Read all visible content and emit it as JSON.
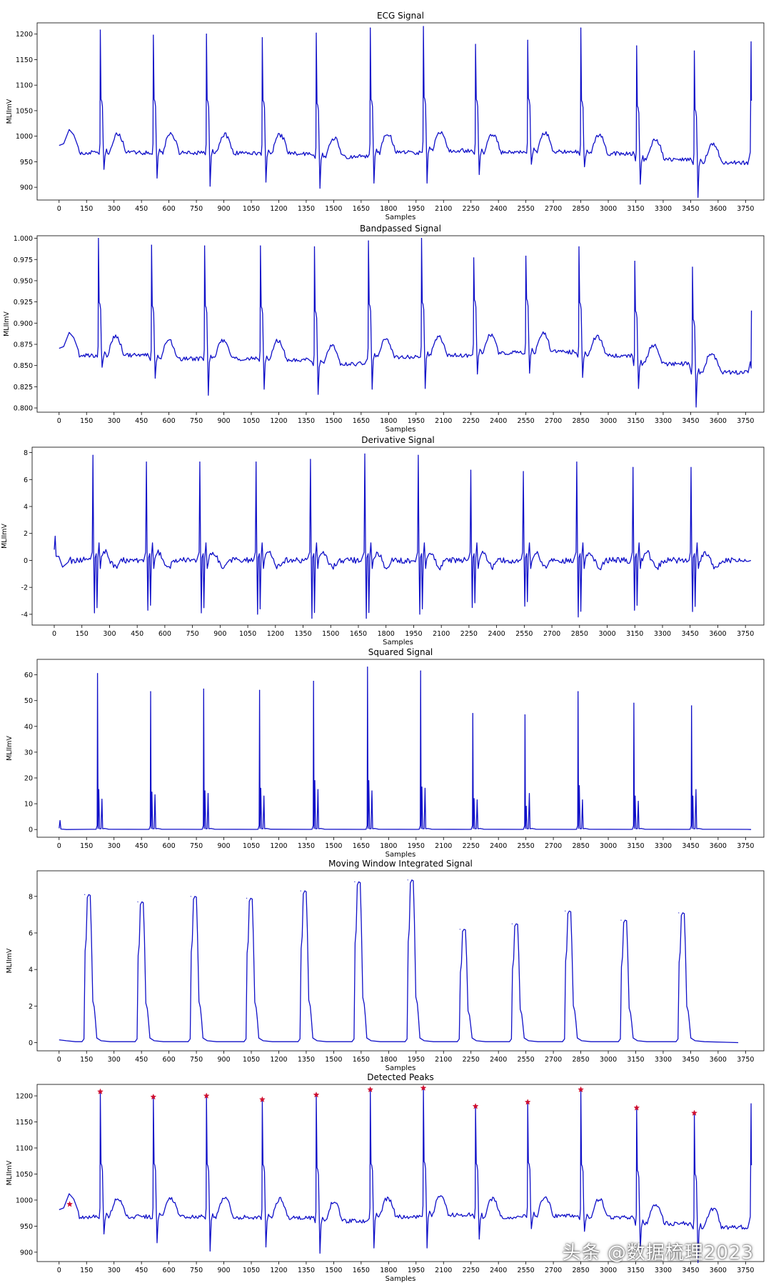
{
  "colors": {
    "signal": "#1010c8",
    "peak": "#d01030",
    "axis": "#000000",
    "background": "#ffffff"
  },
  "watermark": "头条 @数据梳理2023",
  "chart_data": [
    {
      "id": "ecg",
      "type": "line",
      "title": "ECG Signal",
      "xlabel": "Samples",
      "ylabel": "MLIImV",
      "xlim": [
        -120,
        3850
      ],
      "ylim": [
        875,
        1222
      ],
      "xticks": [
        0,
        150,
        300,
        450,
        600,
        750,
        900,
        1050,
        1200,
        1350,
        1500,
        1650,
        1800,
        1950,
        2100,
        2250,
        2400,
        2550,
        2700,
        2850,
        3000,
        3150,
        3300,
        3450,
        3600,
        3750
      ],
      "yticks": [
        900,
        950,
        1000,
        1050,
        1100,
        1150,
        1200
      ],
      "beats": [
        {
          "x": 225,
          "peak": 1208,
          "low": 935,
          "base": 968
        },
        {
          "x": 515,
          "peak": 1198,
          "low": 918,
          "base": 968
        },
        {
          "x": 805,
          "peak": 1200,
          "low": 902,
          "base": 967
        },
        {
          "x": 1110,
          "peak": 1193,
          "low": 910,
          "base": 966
        },
        {
          "x": 1405,
          "peak": 1202,
          "low": 898,
          "base": 960
        },
        {
          "x": 1700,
          "peak": 1212,
          "low": 908,
          "base": 968
        },
        {
          "x": 1990,
          "peak": 1215,
          "low": 908,
          "base": 972
        },
        {
          "x": 2275,
          "peak": 1180,
          "low": 925,
          "base": 968
        },
        {
          "x": 2560,
          "peak": 1188,
          "low": 945,
          "base": 970
        },
        {
          "x": 2850,
          "peak": 1212,
          "low": 940,
          "base": 966
        },
        {
          "x": 3155,
          "peak": 1177,
          "low": 906,
          "base": 955
        },
        {
          "x": 3470,
          "peak": 1167,
          "low": 880,
          "base": 948
        }
      ],
      "end": {
        "x": 3780,
        "value": 1185
      }
    },
    {
      "id": "bandpassed",
      "type": "line",
      "title": "Bandpassed Signal",
      "xlabel": "Samples",
      "ylabel": "MLIImV",
      "xlim": [
        -120,
        3850
      ],
      "ylim": [
        0.795,
        1.003
      ],
      "xticks": [
        0,
        150,
        300,
        450,
        600,
        750,
        900,
        1050,
        1200,
        1350,
        1500,
        1650,
        1800,
        1950,
        2100,
        2250,
        2400,
        2550,
        2700,
        2850,
        3000,
        3150,
        3300,
        3450,
        3600,
        3750
      ],
      "yticks": [
        0.8,
        0.825,
        0.85,
        0.875,
        0.9,
        0.925,
        0.95,
        0.975,
        1.0
      ],
      "beats": [
        {
          "x": 215,
          "peak": 1.0,
          "low": 0.848,
          "base": 0.862
        },
        {
          "x": 505,
          "peak": 0.992,
          "low": 0.835,
          "base": 0.858
        },
        {
          "x": 795,
          "peak": 0.991,
          "low": 0.815,
          "base": 0.858
        },
        {
          "x": 1100,
          "peak": 0.991,
          "low": 0.822,
          "base": 0.857
        },
        {
          "x": 1395,
          "peak": 0.99,
          "low": 0.816,
          "base": 0.852
        },
        {
          "x": 1690,
          "peak": 0.997,
          "low": 0.822,
          "base": 0.86
        },
        {
          "x": 1980,
          "peak": 1.0,
          "low": 0.823,
          "base": 0.862
        },
        {
          "x": 2265,
          "peak": 0.977,
          "low": 0.84,
          "base": 0.865
        },
        {
          "x": 2550,
          "peak": 0.979,
          "low": 0.841,
          "base": 0.866
        },
        {
          "x": 2840,
          "peak": 0.99,
          "low": 0.836,
          "base": 0.862
        },
        {
          "x": 3145,
          "peak": 0.973,
          "low": 0.823,
          "base": 0.852
        },
        {
          "x": 3460,
          "peak": 0.966,
          "low": 0.801,
          "base": 0.842
        }
      ],
      "end": {
        "x": 3780,
        "value": 0.847
      }
    },
    {
      "id": "derivative",
      "type": "line",
      "title": "Derivative Signal",
      "xlabel": "Samples",
      "ylabel": "MLIImV",
      "xlim": [
        -120,
        3850
      ],
      "ylim": [
        -4.8,
        8.4
      ],
      "xticks": [
        0,
        150,
        300,
        450,
        600,
        750,
        900,
        1050,
        1200,
        1350,
        1500,
        1650,
        1800,
        1950,
        2100,
        2250,
        2400,
        2550,
        2700,
        2850,
        3000,
        3150,
        3300,
        3450,
        3600,
        3750
      ],
      "yticks": [
        -4,
        -2,
        0,
        2,
        4,
        6,
        8
      ],
      "beats": [
        {
          "x": 210,
          "peak": 7.8,
          "low": -3.9
        },
        {
          "x": 500,
          "peak": 7.3,
          "low": -3.7
        },
        {
          "x": 790,
          "peak": 7.3,
          "low": -3.9
        },
        {
          "x": 1095,
          "peak": 7.3,
          "low": -4.0
        },
        {
          "x": 1390,
          "peak": 7.5,
          "low": -4.3
        },
        {
          "x": 1685,
          "peak": 7.9,
          "low": -4.3
        },
        {
          "x": 1975,
          "peak": 7.8,
          "low": -4.0
        },
        {
          "x": 2260,
          "peak": 6.7,
          "low": -3.5
        },
        {
          "x": 2545,
          "peak": 6.6,
          "low": -3.4
        },
        {
          "x": 2835,
          "peak": 7.3,
          "low": -4.2
        },
        {
          "x": 3140,
          "peak": 6.9,
          "low": -3.7
        },
        {
          "x": 3455,
          "peak": 6.9,
          "low": -3.8
        }
      ],
      "end": {
        "x": 3780,
        "value": 0.0
      }
    },
    {
      "id": "squared",
      "type": "line",
      "title": "Squared Signal",
      "xlabel": "Samples",
      "ylabel": "MLIImV",
      "xlim": [
        -120,
        3850
      ],
      "ylim": [
        -3,
        66
      ],
      "xticks": [
        0,
        150,
        300,
        450,
        600,
        750,
        900,
        1050,
        1200,
        1350,
        1500,
        1650,
        1800,
        1950,
        2100,
        2250,
        2400,
        2550,
        2700,
        2850,
        3000,
        3150,
        3300,
        3450,
        3600,
        3750
      ],
      "yticks": [
        0,
        10,
        20,
        30,
        40,
        50,
        60
      ],
      "beats": [
        {
          "x": 210,
          "peak": 60.5,
          "second": 15.5,
          "third": 11.8
        },
        {
          "x": 500,
          "peak": 53.5,
          "second": 14.5,
          "third": 13.5
        },
        {
          "x": 790,
          "peak": 54.5,
          "second": 15.0,
          "third": 14.0
        },
        {
          "x": 1095,
          "peak": 54.0,
          "second": 16.0,
          "third": 13.0
        },
        {
          "x": 1390,
          "peak": 57.5,
          "second": 19.0,
          "third": 15.5
        },
        {
          "x": 1685,
          "peak": 63.0,
          "second": 19.0,
          "third": 15.0
        },
        {
          "x": 1975,
          "peak": 61.5,
          "second": 16.5,
          "third": 16.0
        },
        {
          "x": 2260,
          "peak": 45.0,
          "second": 12.0,
          "third": 11.5
        },
        {
          "x": 2545,
          "peak": 44.5,
          "second": 9.0,
          "third": 14.0
        },
        {
          "x": 2835,
          "peak": 53.5,
          "second": 17.0,
          "third": 11.5
        },
        {
          "x": 3140,
          "peak": 49.0,
          "second": 13.0,
          "third": 11.0
        },
        {
          "x": 3455,
          "peak": 48.0,
          "second": 13.0,
          "third": 15.5
        }
      ],
      "end": {
        "x": 3780,
        "value": 0.0
      }
    },
    {
      "id": "integrated",
      "type": "line",
      "title": "Moving Window Integrated Signal",
      "xlabel": "Samples",
      "ylabel": "MLIImV",
      "xlim": [
        -120,
        3850
      ],
      "ylim": [
        -0.45,
        9.4
      ],
      "xticks": [
        0,
        150,
        300,
        450,
        600,
        750,
        900,
        1050,
        1200,
        1350,
        1500,
        1650,
        1800,
        1950,
        2100,
        2250,
        2400,
        2550,
        2700,
        2850,
        3000,
        3150,
        3300,
        3450,
        3600,
        3750
      ],
      "yticks": [
        0,
        2,
        4,
        6,
        8
      ],
      "beats": [
        {
          "x": 140,
          "peak": 8.1
        },
        {
          "x": 430,
          "peak": 7.7
        },
        {
          "x": 720,
          "peak": 8.0
        },
        {
          "x": 1025,
          "peak": 7.9
        },
        {
          "x": 1320,
          "peak": 8.3
        },
        {
          "x": 1615,
          "peak": 8.8
        },
        {
          "x": 1905,
          "peak": 8.9
        },
        {
          "x": 2190,
          "peak": 6.2
        },
        {
          "x": 2475,
          "peak": 6.5
        },
        {
          "x": 2765,
          "peak": 7.2
        },
        {
          "x": 3070,
          "peak": 6.7
        },
        {
          "x": 3385,
          "peak": 7.1
        }
      ],
      "end": {
        "x": 3710,
        "value": 0.0
      }
    },
    {
      "id": "detected",
      "type": "line",
      "title": "Detected Peaks",
      "xlabel": "Samples",
      "ylabel": "MLIImV",
      "xlim": [
        -120,
        3850
      ],
      "ylim": [
        882,
        1222
      ],
      "xticks": [
        0,
        150,
        300,
        450,
        600,
        750,
        900,
        1050,
        1200,
        1350,
        1500,
        1650,
        1800,
        1950,
        2100,
        2250,
        2400,
        2550,
        2700,
        2850,
        3000,
        3150,
        3300,
        3450,
        3600,
        3750
      ],
      "yticks": [
        900,
        950,
        1000,
        1050,
        1100,
        1150,
        1200
      ],
      "beats": [
        {
          "x": 225,
          "peak": 1208,
          "low": 935,
          "base": 968
        },
        {
          "x": 515,
          "peak": 1198,
          "low": 918,
          "base": 968
        },
        {
          "x": 805,
          "peak": 1200,
          "low": 902,
          "base": 967
        },
        {
          "x": 1110,
          "peak": 1193,
          "low": 910,
          "base": 966
        },
        {
          "x": 1405,
          "peak": 1202,
          "low": 898,
          "base": 960
        },
        {
          "x": 1700,
          "peak": 1212,
          "low": 908,
          "base": 968
        },
        {
          "x": 1990,
          "peak": 1215,
          "low": 908,
          "base": 972
        },
        {
          "x": 2275,
          "peak": 1180,
          "low": 925,
          "base": 968
        },
        {
          "x": 2560,
          "peak": 1188,
          "low": 945,
          "base": 970
        },
        {
          "x": 2850,
          "peak": 1212,
          "low": 940,
          "base": 966
        },
        {
          "x": 3155,
          "peak": 1177,
          "low": 906,
          "base": 955
        },
        {
          "x": 3470,
          "peak": 1167,
          "low": 880,
          "base": 948
        }
      ],
      "end": {
        "x": 3780,
        "value": 1185
      },
      "markers": [
        {
          "x": 58,
          "y": 992
        },
        {
          "x": 225,
          "y": 1208
        },
        {
          "x": 515,
          "y": 1198
        },
        {
          "x": 805,
          "y": 1200
        },
        {
          "x": 1110,
          "y": 1193
        },
        {
          "x": 1405,
          "y": 1202
        },
        {
          "x": 1700,
          "y": 1212
        },
        {
          "x": 1990,
          "y": 1215
        },
        {
          "x": 2275,
          "y": 1180
        },
        {
          "x": 2560,
          "y": 1188
        },
        {
          "x": 2850,
          "y": 1212
        },
        {
          "x": 3155,
          "y": 1177
        },
        {
          "x": 3470,
          "y": 1167
        }
      ]
    }
  ]
}
